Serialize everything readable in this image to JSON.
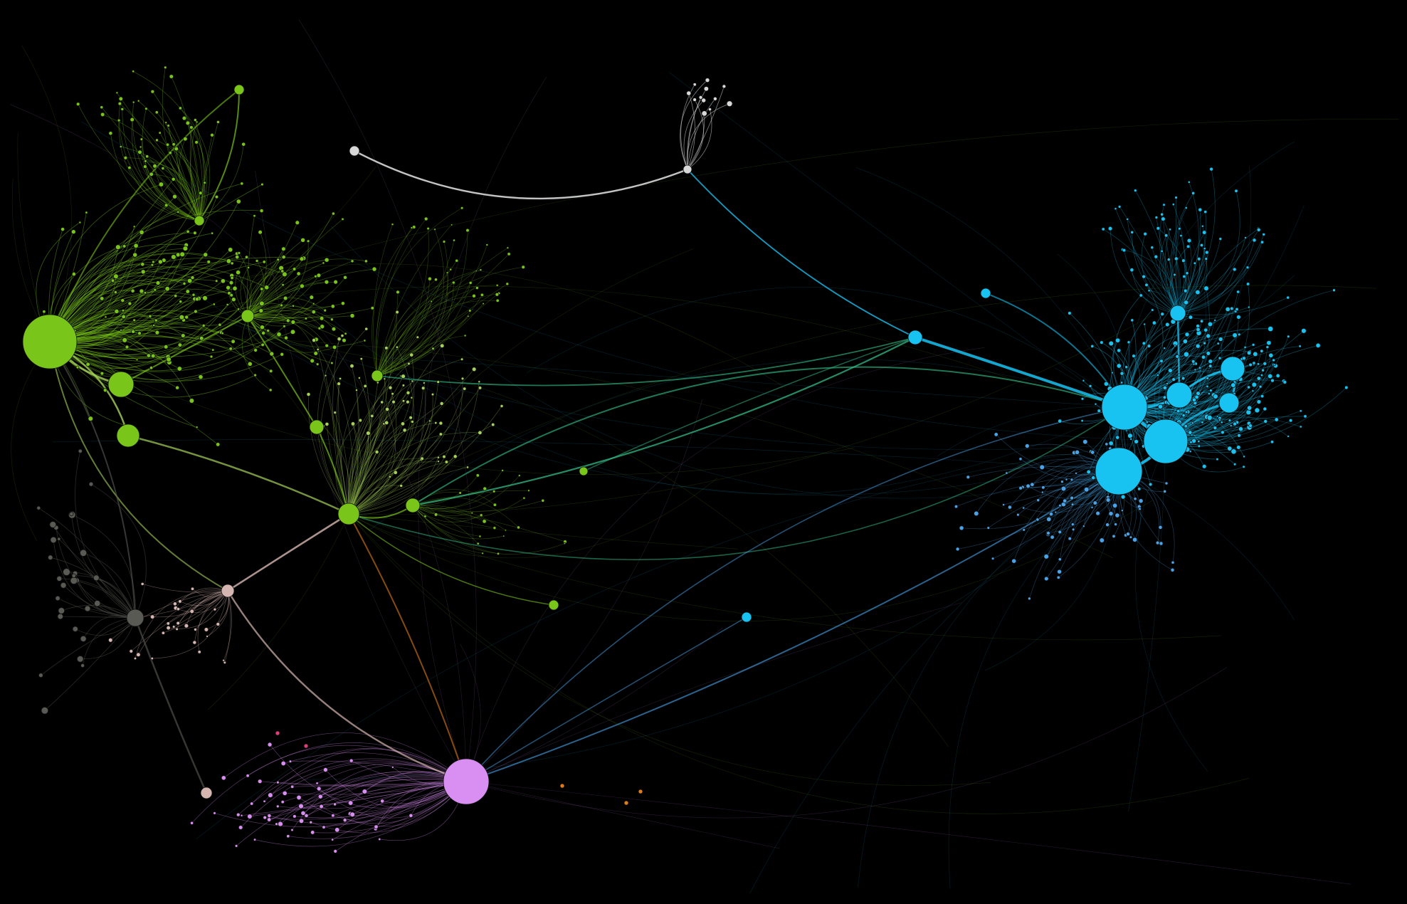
{
  "background_color": "#000000",
  "clusters": [
    {
      "name": "green-cluster",
      "color": "#7ac51a"
    },
    {
      "name": "light-green-cluster",
      "color": "#a6d15a"
    },
    {
      "name": "cyan-cluster",
      "color": "#18c3f2"
    },
    {
      "name": "blue-cluster",
      "color": "#4aa3e8"
    },
    {
      "name": "teal-bridge",
      "color": "#36c48e"
    },
    {
      "name": "violet-cluster",
      "color": "#d98ff2"
    },
    {
      "name": "pink-beige-cluster",
      "color": "#d6b6b0"
    },
    {
      "name": "white-cluster",
      "color": "#d8d8d8"
    },
    {
      "name": "gray-cluster",
      "color": "#5a5a55"
    },
    {
      "name": "orange-accent",
      "color": "#e07d1a"
    },
    {
      "name": "magenta-accent",
      "color": "#e03c78"
    }
  ]
}
